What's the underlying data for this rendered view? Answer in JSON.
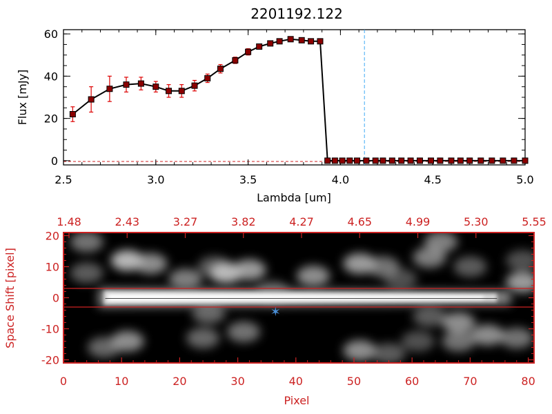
{
  "colors": {
    "line": "#000000",
    "marker": "#8b0000",
    "errorbar": "#dd0000",
    "cutoff": "#3fa9f5",
    "frame2": "#cc2222",
    "star": "#4a90d9"
  },
  "chart_data": [
    {
      "type": "line",
      "title": "2201192.122",
      "xlabel": "Lambda [um]",
      "ylabel": "Flux [mJy]",
      "xlim": [
        2.5,
        5.0
      ],
      "ylim": [
        -2,
        62
      ],
      "xticks": [
        "2.5",
        "3.0",
        "3.5",
        "4.0",
        "4.5",
        "5.0"
      ],
      "yticks": [
        "0",
        "20",
        "40",
        "60"
      ],
      "cutoff_line_x": 4.13,
      "grid": false,
      "series": [
        {
          "x": [
            2.55,
            2.65,
            2.75,
            2.84,
            2.92,
            3.0,
            3.07,
            3.14,
            3.21,
            3.28,
            3.35,
            3.43,
            3.5,
            3.56,
            3.62,
            3.67,
            3.73,
            3.79,
            3.84,
            3.89,
            3.93,
            3.97,
            4.01,
            4.05,
            4.09,
            4.14,
            4.19,
            4.23,
            4.28,
            4.33,
            4.38,
            4.43,
            4.49,
            4.54,
            4.6,
            4.65,
            4.7,
            4.76,
            4.82,
            4.88,
            4.94,
            5.0
          ],
          "y": [
            22,
            29,
            34,
            36,
            36.5,
            35,
            33,
            33,
            35.5,
            39,
            43.5,
            47.5,
            51.5,
            54,
            55.5,
            56.5,
            57.5,
            57,
            56.5,
            56.5,
            0,
            0,
            0,
            0,
            0,
            0,
            0,
            0,
            0,
            0,
            0,
            0,
            0,
            0,
            0,
            0,
            0,
            0,
            0,
            0,
            0,
            0
          ],
          "yerr": [
            3.5,
            6,
            6,
            3.5,
            3,
            2.5,
            3,
            3,
            2.5,
            2,
            2,
            1.5,
            1.5,
            1,
            1,
            1,
            1,
            1,
            1,
            1,
            0,
            0,
            0,
            0,
            0,
            0,
            0,
            0,
            0,
            0,
            0,
            0,
            0,
            0,
            0,
            0,
            0,
            0,
            0,
            0,
            0,
            0
          ]
        }
      ]
    },
    {
      "type": "heatmap",
      "xlabel": "Pixel",
      "ylabel": "Space Shift [pixel]",
      "xlim": [
        0,
        81
      ],
      "ylim": [
        -21,
        21
      ],
      "xticks": [
        "0",
        "10",
        "20",
        "30",
        "40",
        "50",
        "60",
        "70",
        "80"
      ],
      "yticks": [
        "-20",
        "-10",
        "0",
        "10",
        "20"
      ],
      "top_axis_ticks": [
        "1.48",
        "2.43",
        "3.27",
        "3.82",
        "4.27",
        "4.65",
        "4.99",
        "5.30",
        "5.55"
      ],
      "aperture_lines_y": [
        3,
        -3
      ],
      "star_marker": {
        "x": 36.5,
        "y": -4.5
      },
      "trace": {
        "x_start": 6,
        "x_end": 77,
        "y_center": 0
      },
      "blobs": [
        {
          "x": 4,
          "y": 18,
          "a": 0.45
        },
        {
          "x": 4,
          "y": 8,
          "a": 0.35
        },
        {
          "x": 11,
          "y": 12,
          "a": 0.7
        },
        {
          "x": 15,
          "y": 11,
          "a": 0.55
        },
        {
          "x": 21,
          "y": 6,
          "a": 0.5
        },
        {
          "x": 26,
          "y": 10,
          "a": 0.35
        },
        {
          "x": 28,
          "y": 8,
          "a": 0.7
        },
        {
          "x": 32,
          "y": 9,
          "a": 0.6
        },
        {
          "x": 36,
          "y": 2,
          "a": 0.35
        },
        {
          "x": 43,
          "y": 7,
          "a": 0.55
        },
        {
          "x": 51,
          "y": 11,
          "a": 0.6
        },
        {
          "x": 55,
          "y": 10,
          "a": 0.45
        },
        {
          "x": 58,
          "y": 6,
          "a": 0.3
        },
        {
          "x": 63,
          "y": 13,
          "a": 0.5
        },
        {
          "x": 65,
          "y": 18,
          "a": 0.5
        },
        {
          "x": 70,
          "y": 10,
          "a": 0.35
        },
        {
          "x": 79,
          "y": 5,
          "a": 0.6
        },
        {
          "x": 79,
          "y": 12,
          "a": 0.3
        },
        {
          "x": 25,
          "y": -5,
          "a": 0.4
        },
        {
          "x": 31,
          "y": -11,
          "a": 0.45
        },
        {
          "x": 24,
          "y": -13,
          "a": 0.4
        },
        {
          "x": 11,
          "y": -14,
          "a": 0.55
        },
        {
          "x": 7,
          "y": -16,
          "a": 0.4
        },
        {
          "x": 51,
          "y": -17,
          "a": 0.55
        },
        {
          "x": 56,
          "y": -18,
          "a": 0.35
        },
        {
          "x": 63,
          "y": -6,
          "a": 0.35
        },
        {
          "x": 68,
          "y": -8,
          "a": 0.55
        },
        {
          "x": 73,
          "y": -12,
          "a": 0.55
        },
        {
          "x": 68,
          "y": -14,
          "a": 0.45
        },
        {
          "x": 78,
          "y": -13,
          "a": 0.45
        },
        {
          "x": 61,
          "y": -14,
          "a": 0.3
        }
      ]
    }
  ]
}
